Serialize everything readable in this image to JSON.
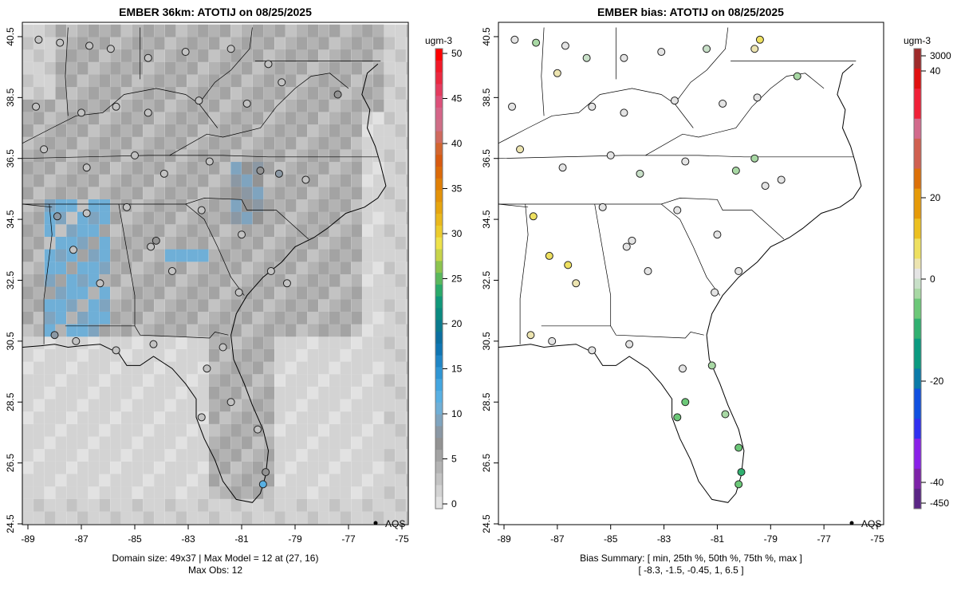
{
  "chart_data": [
    {
      "type": "heatmap",
      "title": "EMBER 36km: ATOTIJ on 08/25/2025",
      "units": "ugm-3",
      "xticks": [
        "-89",
        "-87",
        "-85",
        "-83",
        "-81",
        "-79",
        "-77",
        "-75"
      ],
      "yticks": [
        "24.5",
        "26.5",
        "28.5",
        "30.5",
        "32.5",
        "34.5",
        "36.5",
        "38.5",
        "40.5"
      ],
      "xlim": [
        -89.2,
        -74.8
      ],
      "ylim": [
        24.2,
        40.8
      ],
      "colorbar_ticks": [
        "0",
        "5",
        "10",
        "15",
        "20",
        "25",
        "30",
        "35",
        "40",
        "45",
        "50"
      ],
      "colorbar_range": [
        0,
        50
      ],
      "legend": "AQS",
      "footer": [
        "Domain size: 49x37 | Max Model = 12 at (27, 16)",
        "Max Obs: 12"
      ],
      "stations": [
        [
          -88.6,
          40.4,
          3
        ],
        [
          -87.8,
          40.3,
          3
        ],
        [
          -86.7,
          40.2,
          3
        ],
        [
          -85.9,
          40.1,
          3
        ],
        [
          -84.5,
          39.8,
          3
        ],
        [
          -83.1,
          40.0,
          3
        ],
        [
          -81.4,
          40.1,
          3
        ],
        [
          -80.0,
          39.6,
          3
        ],
        [
          -88.7,
          38.2,
          3
        ],
        [
          -87.0,
          38.0,
          3
        ],
        [
          -85.7,
          38.2,
          3
        ],
        [
          -84.5,
          38.0,
          3
        ],
        [
          -82.6,
          38.4,
          3
        ],
        [
          -80.8,
          38.3,
          3
        ],
        [
          -79.5,
          39.0,
          3
        ],
        [
          -77.4,
          38.6,
          6
        ],
        [
          -88.4,
          36.8,
          3
        ],
        [
          -86.8,
          36.2,
          3
        ],
        [
          -85.0,
          36.6,
          3
        ],
        [
          -83.9,
          36.0,
          3
        ],
        [
          -82.2,
          36.4,
          3
        ],
        [
          -80.3,
          36.1,
          6
        ],
        [
          -79.6,
          36.0,
          8
        ],
        [
          -78.6,
          35.8,
          3
        ],
        [
          -87.9,
          34.6,
          8
        ],
        [
          -86.8,
          34.7,
          3
        ],
        [
          -85.3,
          34.9,
          3
        ],
        [
          -84.2,
          33.8,
          6
        ],
        [
          -82.5,
          34.8,
          3
        ],
        [
          -81.0,
          34.0,
          3
        ],
        [
          -79.9,
          32.8,
          3
        ],
        [
          -87.3,
          33.5,
          3
        ],
        [
          -86.3,
          32.4,
          3
        ],
        [
          -84.4,
          33.6,
          3
        ],
        [
          -83.6,
          32.8,
          3
        ],
        [
          -81.1,
          32.1,
          3
        ],
        [
          -88.0,
          30.7,
          8
        ],
        [
          -87.2,
          30.5,
          3
        ],
        [
          -85.7,
          30.2,
          3
        ],
        [
          -84.3,
          30.4,
          3
        ],
        [
          -82.3,
          29.6,
          3
        ],
        [
          -81.7,
          30.3,
          3
        ],
        [
          -81.4,
          28.5,
          3
        ],
        [
          -82.5,
          28.0,
          3
        ],
        [
          -80.4,
          27.6,
          3
        ],
        [
          -80.1,
          26.2,
          6
        ],
        [
          -80.2,
          25.8,
          12
        ],
        [
          -79.3,
          32.4,
          3
        ]
      ]
    },
    {
      "type": "scatter",
      "title": "EMBER bias: ATOTIJ on 08/25/2025",
      "units": "ugm-3",
      "xticks": [
        "-89",
        "-87",
        "-85",
        "-83",
        "-81",
        "-79",
        "-77",
        "-75"
      ],
      "yticks": [
        "24.5",
        "26.5",
        "28.5",
        "30.5",
        "32.5",
        "34.5",
        "36.5",
        "38.5",
        "40.5"
      ],
      "xlim": [
        -89.2,
        -74.8
      ],
      "ylim": [
        24.2,
        40.8
      ],
      "colorbar_ticks": [
        "3000",
        "40",
        "20",
        "0",
        "-20",
        "-40",
        "-450"
      ],
      "legend": "AQS",
      "footer": [
        "Bias Summary: [ min, 25th %, 50th %, 75th %, max ]",
        "[ -8.3,   -1.5,   -0.45,   1,   6.5 ]"
      ],
      "summary": {
        "min": -8.3,
        "p25": -1.5,
        "p50": -0.45,
        "p75": 1,
        "max": 6.5
      },
      "stations": [
        [
          -88.6,
          40.4,
          0
        ],
        [
          -87.8,
          40.3,
          -2
        ],
        [
          -86.7,
          40.2,
          0
        ],
        [
          -85.9,
          39.8,
          -1
        ],
        [
          -84.5,
          39.8,
          0
        ],
        [
          -83.1,
          40.0,
          0
        ],
        [
          -81.4,
          40.1,
          -1
        ],
        [
          -79.4,
          40.4,
          6.5
        ],
        [
          -79.6,
          40.1,
          3
        ],
        [
          -88.7,
          38.2,
          0
        ],
        [
          -87.0,
          39.3,
          2
        ],
        [
          -85.7,
          38.2,
          0
        ],
        [
          -84.5,
          38.0,
          0
        ],
        [
          -82.6,
          38.4,
          0
        ],
        [
          -80.8,
          38.3,
          0
        ],
        [
          -79.5,
          38.5,
          0
        ],
        [
          -78.0,
          39.2,
          -2
        ],
        [
          -88.4,
          36.8,
          3
        ],
        [
          -86.8,
          36.2,
          0
        ],
        [
          -85.0,
          36.6,
          0
        ],
        [
          -83.9,
          36.0,
          -1
        ],
        [
          -82.2,
          36.4,
          0
        ],
        [
          -80.3,
          36.1,
          -3
        ],
        [
          -79.6,
          36.5,
          -4
        ],
        [
          -79.2,
          35.6,
          0
        ],
        [
          -78.6,
          35.8,
          0
        ],
        [
          -87.9,
          34.6,
          5
        ],
        [
          -87.3,
          33.3,
          5
        ],
        [
          -86.6,
          33.0,
          4
        ],
        [
          -85.3,
          34.9,
          0
        ],
        [
          -84.2,
          33.8,
          0
        ],
        [
          -82.5,
          34.8,
          0
        ],
        [
          -81.0,
          34.0,
          0
        ],
        [
          -80.2,
          32.8,
          0
        ],
        [
          -86.3,
          32.4,
          2
        ],
        [
          -84.4,
          33.6,
          0
        ],
        [
          -83.6,
          32.8,
          0
        ],
        [
          -81.1,
          32.1,
          0
        ],
        [
          -88.0,
          30.7,
          3
        ],
        [
          -87.2,
          30.5,
          0
        ],
        [
          -85.7,
          30.2,
          0
        ],
        [
          -84.3,
          30.4,
          0
        ],
        [
          -82.3,
          29.6,
          0
        ],
        [
          -81.2,
          29.7,
          -3
        ],
        [
          -82.2,
          28.5,
          -5
        ],
        [
          -82.5,
          28.0,
          -5
        ],
        [
          -80.7,
          28.1,
          -2
        ],
        [
          -80.2,
          27.0,
          -6
        ],
        [
          -80.1,
          26.2,
          -8.3
        ],
        [
          -80.2,
          25.8,
          -6
        ]
      ]
    }
  ]
}
